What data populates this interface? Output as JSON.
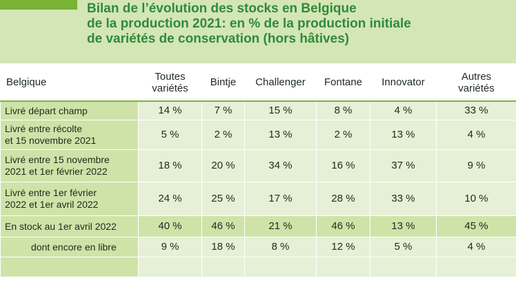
{
  "title": {
    "line1": "Bilan de l’évolution des stocks en Belgique",
    "line2": "de la production 2021: en % de la production initiale",
    "line3": "de variétés de conservation (hors hâtives)"
  },
  "table": {
    "headers": [
      "Belgique",
      "Toutes variétés",
      "Bintje",
      "Challenger",
      "Fontane",
      "Innovator",
      "Autres variétés"
    ],
    "header_lines": {
      "h1a": "Toutes",
      "h1b": "variétés",
      "h6a": "Autres",
      "h6b": "variétés"
    },
    "rows": [
      {
        "label": "Livré départ champ",
        "values": [
          "14 %",
          "7 %",
          "15 %",
          "8 %",
          "4 %",
          "33 %"
        ]
      },
      {
        "label": "Livré entre récolte et 15 novembre 2021",
        "label_a": "Livré entre récolte",
        "label_b": "et 15 novembre 2021",
        "values": [
          "5 %",
          "2 %",
          "13 %",
          "2 %",
          "13 %",
          "4 %"
        ]
      },
      {
        "label": "Livré entre 15 novembre 2021 et 1er février 2022",
        "label_a": "Livré entre 15 novembre",
        "label_b": "2021 et 1er février 2022",
        "values": [
          "18 %",
          "20 %",
          "34 %",
          "16 %",
          "37 %",
          "9 %"
        ]
      },
      {
        "label": "Livré entre 1er février 2022 et 1er avril 2022",
        "label_a": "Livré entre 1er février",
        "label_b": "2022 et 1er avril 2022",
        "values": [
          "24 %",
          "25 %",
          "17 %",
          "28 %",
          "33 %",
          "10 %"
        ]
      },
      {
        "label": "En stock au 1er avril 2022",
        "values": [
          "40 %",
          "46 %",
          "21 %",
          "46 %",
          "13 %",
          "45 %"
        ]
      },
      {
        "label": "dont encore en libre",
        "values": [
          "9 %",
          "18 %",
          "8 %",
          "12 %",
          "5 %",
          "4 %"
        ]
      }
    ]
  },
  "colors": {
    "header_band": "#d4e6b5",
    "title": "#2f8a3c",
    "label_cells": "#cfe3a8",
    "value_cells": "#e6f0d6"
  }
}
